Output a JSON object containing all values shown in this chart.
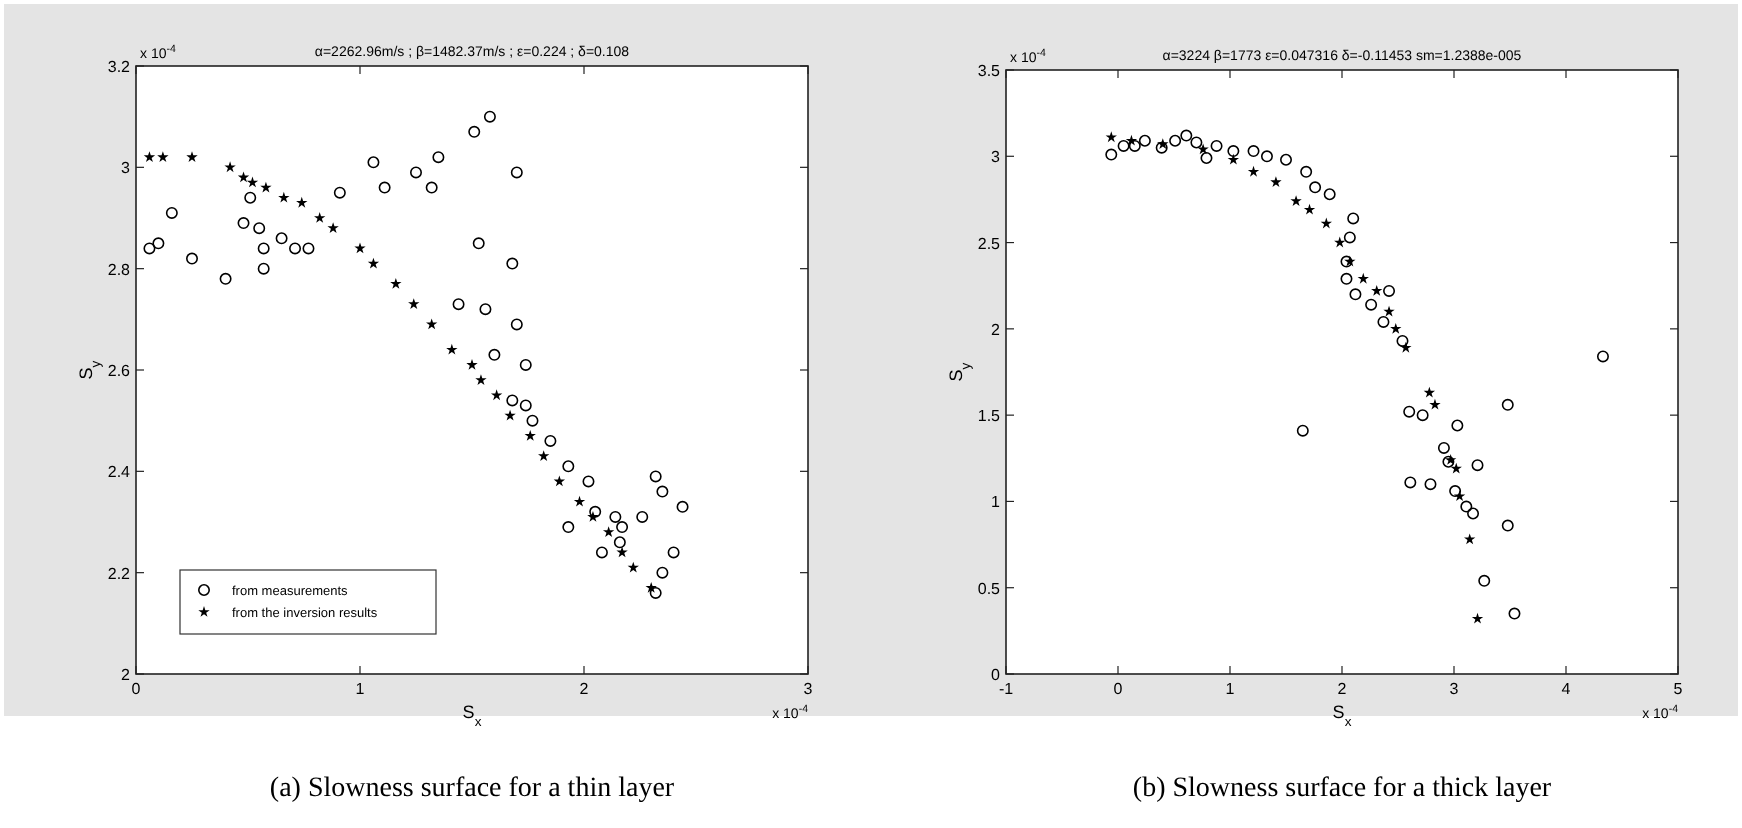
{
  "chart_data": [
    {
      "type": "scatter",
      "title": "α=2262.96m/s ; β=1482.37m/s ; ε=0.224 ; δ=0.108",
      "xlabel": "S$_{x}$",
      "ylabel": "S$_{y}$",
      "xlim": [
        0,
        3
      ],
      "xticks": [
        0,
        1,
        2,
        3
      ],
      "ylim": [
        2,
        3.2
      ],
      "yticks": [
        2,
        2.2,
        2.4,
        2.6,
        2.8,
        3,
        3.2
      ],
      "legend": "bottom left",
      "grid": false,
      "annotations": [
        "x 10$^{-4}$",
        "x 10$^{-4}$",
        "(a) Slowness surface for a thin layer"
      ],
      "series": [
        {
          "name": "from measurements",
          "color": "#000000",
          "marker": "circle",
          "x": [
            0.06,
            0.1,
            0.16,
            0.25,
            0.4,
            0.51,
            0.48,
            0.55,
            0.57,
            0.57,
            0.65,
            0.71,
            0.77,
            0.91,
            1.06,
            1.11,
            1.25,
            1.32,
            1.35,
            1.51,
            1.58,
            1.7,
            1.53,
            1.68,
            1.44,
            1.56,
            1.7,
            1.6,
            1.74,
            1.68,
            1.74,
            1.77,
            1.85,
            1.93,
            2.02,
            1.93,
            2.05,
            2.14,
            2.17,
            2.26,
            2.08,
            2.16,
            2.32,
            2.35,
            2.44,
            2.4,
            2.35,
            2.32
          ],
          "values": [
            2.84,
            2.85,
            2.91,
            2.82,
            2.78,
            2.94,
            2.89,
            2.88,
            2.84,
            2.8,
            2.86,
            2.84,
            2.84,
            2.95,
            3.01,
            2.96,
            2.99,
            2.96,
            3.02,
            3.07,
            3.1,
            2.99,
            2.85,
            2.81,
            2.73,
            2.72,
            2.69,
            2.63,
            2.61,
            2.54,
            2.53,
            2.5,
            2.46,
            2.41,
            2.38,
            2.29,
            2.32,
            2.31,
            2.29,
            2.31,
            2.24,
            2.26,
            2.39,
            2.36,
            2.33,
            2.24,
            2.2,
            2.16
          ]
        },
        {
          "name": "from the inversion results",
          "color": "#000000",
          "marker": "star",
          "x": [
            0.06,
            0.12,
            0.25,
            0.42,
            0.48,
            0.52,
            0.58,
            0.66,
            0.74,
            0.82,
            0.88,
            1.0,
            1.06,
            1.16,
            1.24,
            1.32,
            1.41,
            1.5,
            1.54,
            1.61,
            1.67,
            1.76,
            1.82,
            1.89,
            1.98,
            2.04,
            2.11,
            2.17,
            2.22,
            2.3
          ],
          "values": [
            3.02,
            3.02,
            3.02,
            3.0,
            2.98,
            2.97,
            2.96,
            2.94,
            2.93,
            2.9,
            2.88,
            2.84,
            2.81,
            2.77,
            2.73,
            2.69,
            2.64,
            2.61,
            2.58,
            2.55,
            2.51,
            2.47,
            2.43,
            2.38,
            2.34,
            2.31,
            2.28,
            2.24,
            2.21,
            2.17
          ]
        }
      ]
    },
    {
      "type": "scatter",
      "title": "α=3224  β=1773  ε=0.047316  δ=-0.11453  sm=1.2388e-005",
      "xlabel": "S$_{x}$",
      "ylabel": "S$_{y}$",
      "xlim": [
        -1,
        5
      ],
      "xticks": [
        -1,
        0,
        1,
        2,
        3,
        4,
        5
      ],
      "ylim": [
        0,
        3.5
      ],
      "yticks": [
        0,
        0.5,
        1,
        1.5,
        2,
        2.5,
        3,
        3.5
      ],
      "grid": false,
      "annotations": [
        "x 10$^{-4}$",
        "x 10$^{-4}$",
        "(b) Slowness surface for a thick layer"
      ],
      "series": [
        {
          "color": "#000000",
          "marker": "circle",
          "x": [
            -0.06,
            0.05,
            0.15,
            0.24,
            0.39,
            0.51,
            0.61,
            0.7,
            0.79,
            0.88,
            1.03,
            1.21,
            1.33,
            1.5,
            1.68,
            1.76,
            1.89,
            2.1,
            2.07,
            2.04,
            2.04,
            2.12,
            2.26,
            2.42,
            2.37,
            2.54,
            4.33,
            1.65,
            2.6,
            2.72,
            3.48,
            3.03,
            2.91,
            2.95,
            3.21,
            2.61,
            2.79,
            3.01,
            3.11,
            3.17,
            3.48,
            3.27,
            3.54
          ],
          "values": [
            3.01,
            3.06,
            3.06,
            3.09,
            3.05,
            3.09,
            3.12,
            3.08,
            2.99,
            3.06,
            3.03,
            3.03,
            3.0,
            2.98,
            2.91,
            2.82,
            2.78,
            2.64,
            2.53,
            2.39,
            2.29,
            2.2,
            2.14,
            2.22,
            2.04,
            1.93,
            1.84,
            1.41,
            1.52,
            1.5,
            1.56,
            1.44,
            1.31,
            1.23,
            1.21,
            1.11,
            1.1,
            1.06,
            0.97,
            0.93,
            0.86,
            0.54,
            0.35
          ]
        },
        {
          "color": "#000000",
          "marker": "star",
          "x": [
            -0.06,
            0.12,
            0.4,
            0.76,
            1.03,
            1.21,
            1.41,
            1.59,
            1.71,
            1.86,
            1.98,
            2.07,
            2.19,
            2.31,
            2.42,
            2.48,
            2.57,
            2.78,
            2.83,
            2.97,
            3.02,
            3.05,
            3.14,
            3.21
          ],
          "values": [
            3.11,
            3.09,
            3.07,
            3.04,
            2.98,
            2.91,
            2.85,
            2.74,
            2.69,
            2.61,
            2.5,
            2.39,
            2.29,
            2.22,
            2.1,
            2.0,
            1.89,
            1.63,
            1.56,
            1.24,
            1.19,
            1.03,
            0.78,
            0.32
          ]
        }
      ]
    }
  ]
}
